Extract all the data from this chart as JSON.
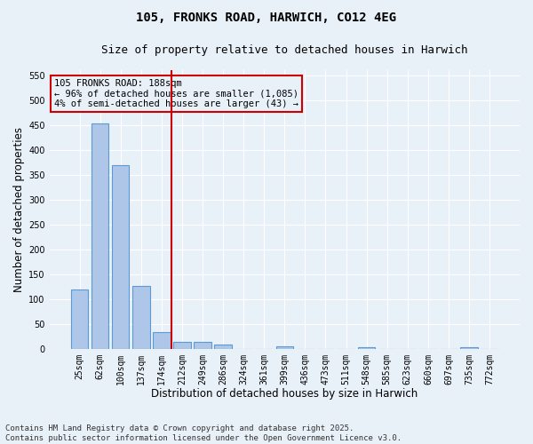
{
  "title": "105, FRONKS ROAD, HARWICH, CO12 4EG",
  "subtitle": "Size of property relative to detached houses in Harwich",
  "xlabel": "Distribution of detached houses by size in Harwich",
  "ylabel": "Number of detached properties",
  "bar_color": "#aec6e8",
  "bar_edge_color": "#5b9bd5",
  "categories": [
    "25sqm",
    "62sqm",
    "100sqm",
    "137sqm",
    "174sqm",
    "212sqm",
    "249sqm",
    "286sqm",
    "324sqm",
    "361sqm",
    "399sqm",
    "436sqm",
    "473sqm",
    "511sqm",
    "548sqm",
    "585sqm",
    "623sqm",
    "660sqm",
    "697sqm",
    "735sqm",
    "772sqm"
  ],
  "values": [
    120,
    453,
    370,
    127,
    33,
    13,
    13,
    8,
    0,
    0,
    5,
    0,
    0,
    0,
    3,
    0,
    0,
    0,
    0,
    3,
    0
  ],
  "ylim": [
    0,
    560
  ],
  "yticks": [
    0,
    50,
    100,
    150,
    200,
    250,
    300,
    350,
    400,
    450,
    500,
    550
  ],
  "vline_x": 4.5,
  "vline_color": "#cc0000",
  "annotation_text": "105 FRONKS ROAD: 188sqm\n← 96% of detached houses are smaller (1,085)\n4% of semi-detached houses are larger (43) →",
  "annotation_box_color": "#cc0000",
  "background_color": "#e8f0f8",
  "grid_color": "#ffffff",
  "footer_text": "Contains HM Land Registry data © Crown copyright and database right 2025.\nContains public sector information licensed under the Open Government Licence v3.0.",
  "title_fontsize": 10,
  "subtitle_fontsize": 9,
  "xlabel_fontsize": 8.5,
  "ylabel_fontsize": 8.5,
  "tick_fontsize": 7,
  "annotation_fontsize": 7.5,
  "footer_fontsize": 6.5
}
